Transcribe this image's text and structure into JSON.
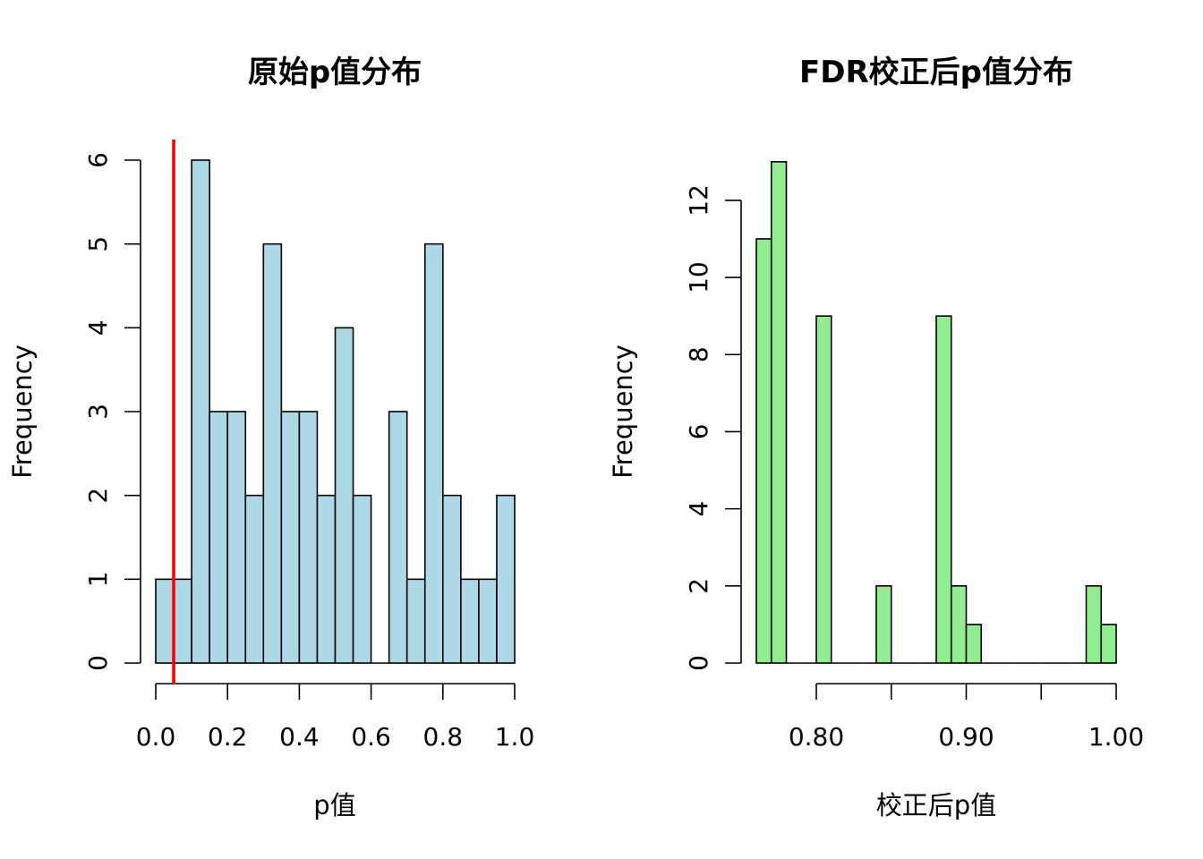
{
  "chart_data": [
    {
      "type": "bar",
      "title": "原始p值分布",
      "xlabel": "p值",
      "ylabel": "Frequency",
      "bin_edges": [
        0.0,
        0.05,
        0.1,
        0.15,
        0.2,
        0.25,
        0.3,
        0.35,
        0.4,
        0.45,
        0.5,
        0.55,
        0.6,
        0.65,
        0.7,
        0.75,
        0.8,
        0.85,
        0.9,
        0.95,
        1.0
      ],
      "values": [
        1,
        1,
        6,
        3,
        3,
        2,
        5,
        3,
        3,
        2,
        4,
        2,
        0,
        3,
        1,
        5,
        2,
        1,
        1,
        2
      ],
      "bar_color": "#add8e6",
      "xlim": [
        0,
        1
      ],
      "ylim": [
        0,
        6
      ],
      "x_ticks": [
        "0.0",
        "0.2",
        "0.4",
        "0.6",
        "0.8",
        "1.0"
      ],
      "y_ticks": [
        "0",
        "1",
        "2",
        "3",
        "4",
        "5",
        "6"
      ],
      "vline": {
        "x": 0.05,
        "color": "#ff0000"
      }
    },
    {
      "type": "bar",
      "title": "FDR校正后p值分布",
      "xlabel": "校正后p值",
      "ylabel": "Frequency",
      "bin_edges": [
        0.76,
        0.77,
        0.78,
        0.79,
        0.8,
        0.81,
        0.82,
        0.83,
        0.84,
        0.85,
        0.86,
        0.87,
        0.88,
        0.89,
        0.9,
        0.91,
        0.92,
        0.93,
        0.94,
        0.95,
        0.96,
        0.97,
        0.98,
        0.99,
        1.0
      ],
      "values": [
        11,
        13,
        0,
        0,
        9,
        0,
        0,
        0,
        2,
        0,
        0,
        0,
        9,
        2,
        1,
        0,
        0,
        0,
        0,
        0,
        0,
        0,
        2,
        1
      ],
      "bar_color": "#90ee90",
      "xlim": [
        0.76,
        1.0
      ],
      "ylim": [
        0,
        13
      ],
      "x_ticks": [
        "0.80",
        "0.90",
        "1.00"
      ],
      "x_minor_ticks": [
        0.85,
        0.95
      ],
      "y_ticks": [
        "0",
        "2",
        "4",
        "6",
        "8",
        "10",
        "12"
      ]
    }
  ]
}
